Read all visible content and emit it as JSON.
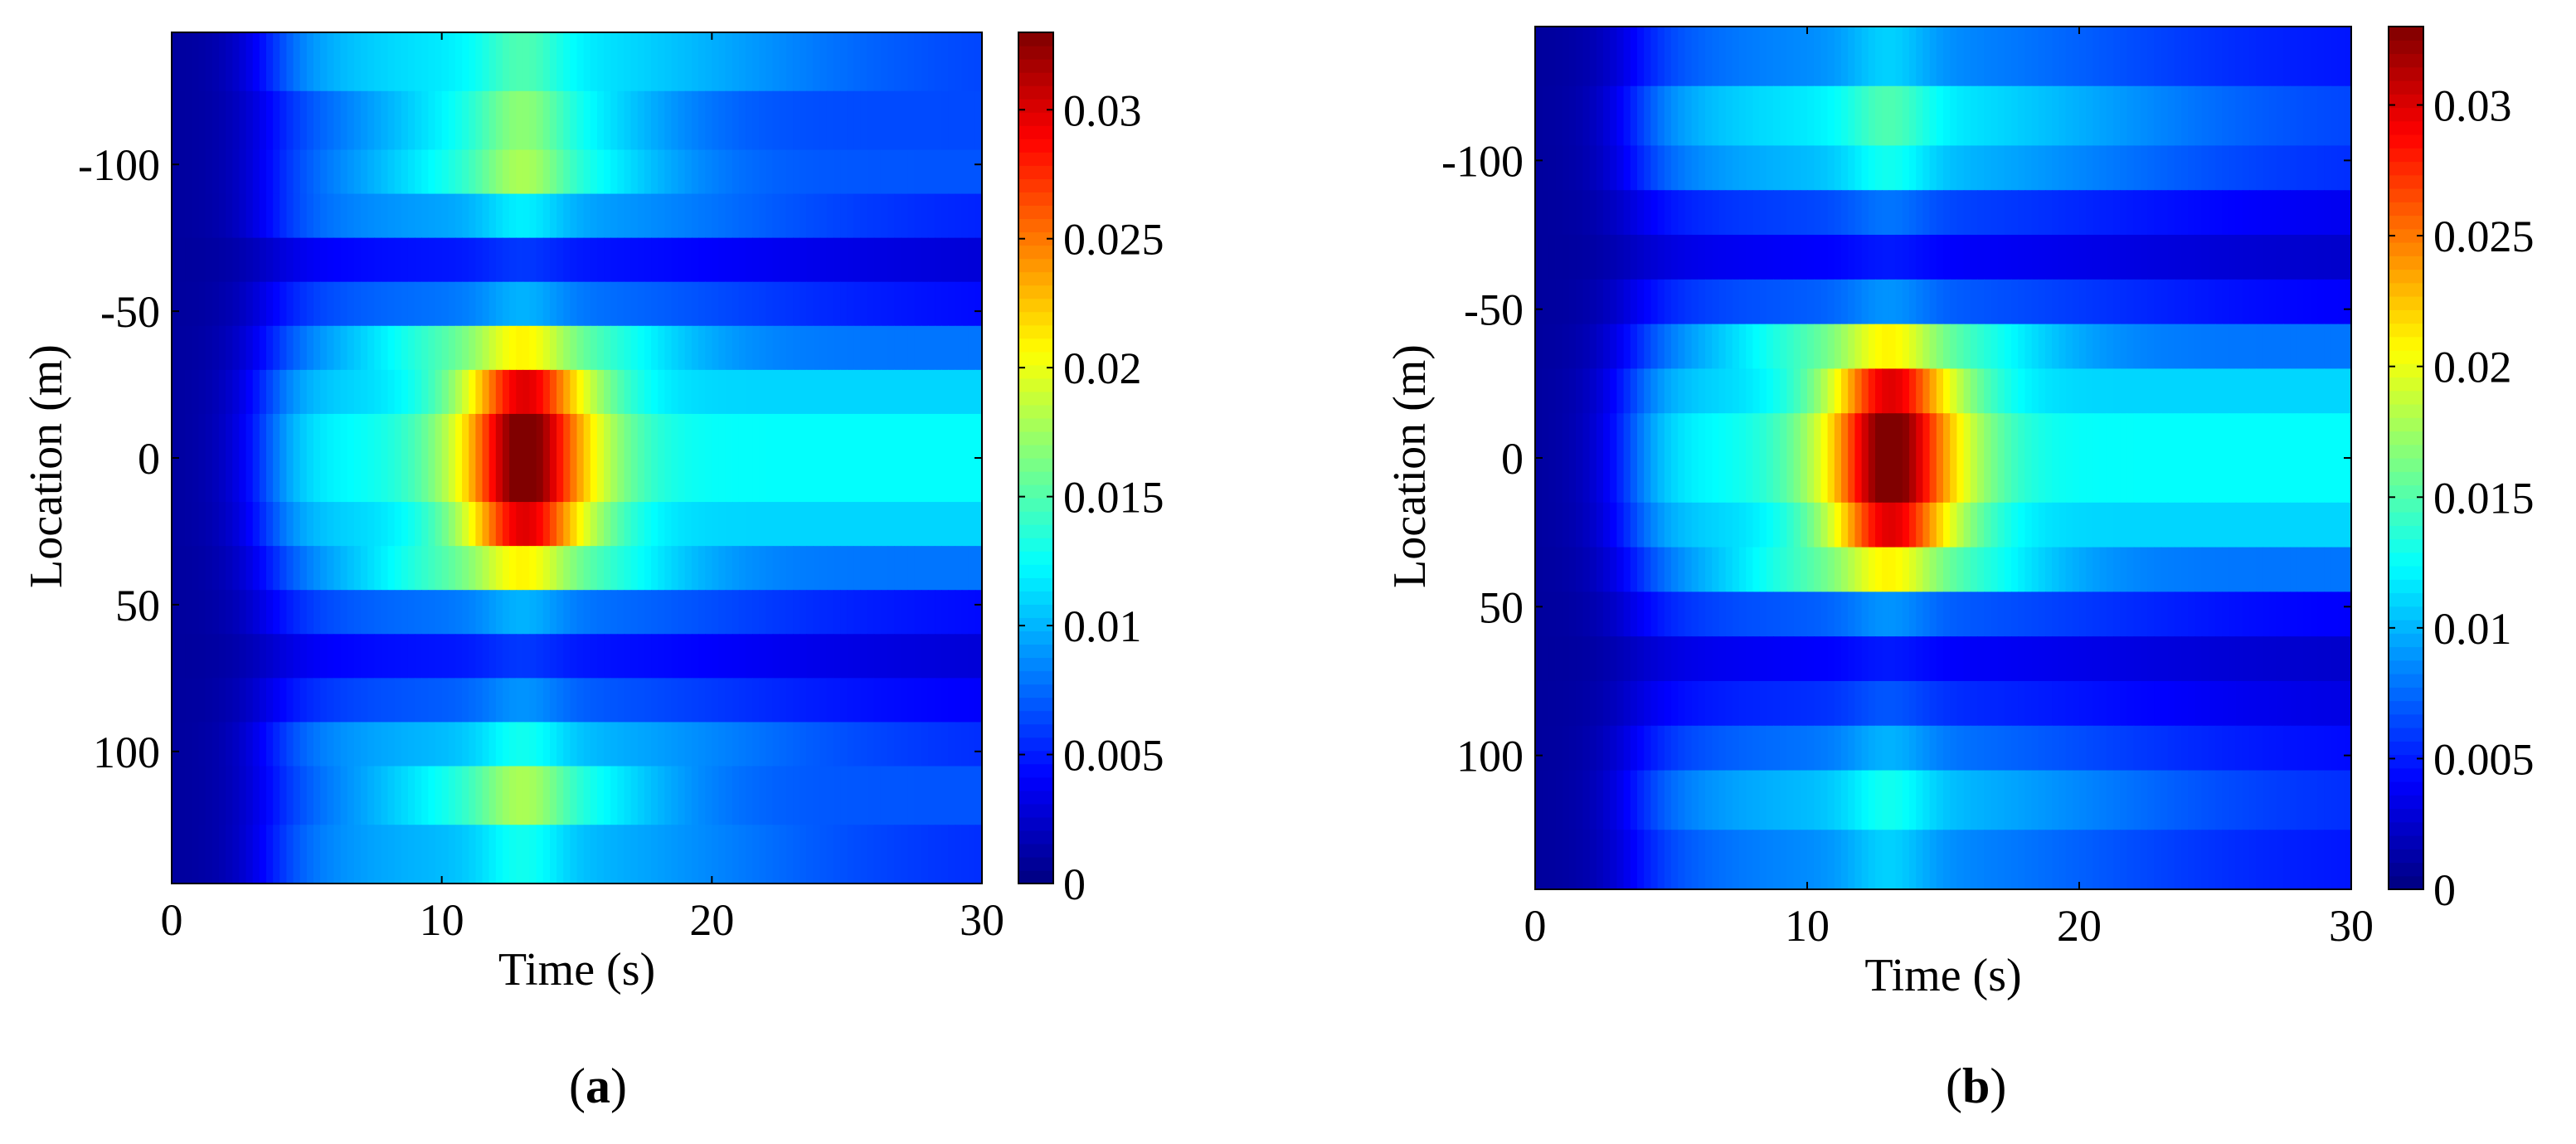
{
  "chart_data": [
    {
      "panel": "a",
      "type": "heatmap",
      "xlabel": "Time (s)",
      "ylabel": "Location (m)",
      "xlim": [
        0,
        30
      ],
      "ylim": [
        -145,
        145
      ],
      "y_direction": "down",
      "xticks": [
        "0",
        "10",
        "20",
        "30"
      ],
      "yticks": [
        "-100",
        "-50",
        "0",
        "50",
        "100"
      ],
      "colorbar": {
        "colormap": "jet",
        "range": [
          0,
          0.033
        ],
        "ticks": [
          "0",
          "0.005",
          "0.01",
          "0.015",
          "0.02",
          "0.025",
          "0.03"
        ]
      },
      "bands": [
        {
          "from": -145,
          "to": -125,
          "peak": 0.014
        },
        {
          "from": -125,
          "to": -105,
          "peak": 0.016
        },
        {
          "from": -105,
          "to": -90,
          "peak": 0.017
        },
        {
          "from": -90,
          "to": -75,
          "peak": 0.011
        },
        {
          "from": -75,
          "to": -60,
          "peak": 0.005
        },
        {
          "from": -60,
          "to": -45,
          "peak": 0.009
        },
        {
          "from": -45,
          "to": -30,
          "peak": 0.02
        },
        {
          "from": -30,
          "to": -15,
          "peak": 0.029
        },
        {
          "from": -15,
          "to": 0,
          "peak": 0.033
        },
        {
          "from": 0,
          "to": 15,
          "peak": 0.033
        },
        {
          "from": 15,
          "to": 30,
          "peak": 0.029
        },
        {
          "from": 30,
          "to": 45,
          "peak": 0.02
        },
        {
          "from": 45,
          "to": 60,
          "peak": 0.009
        },
        {
          "from": 60,
          "to": 75,
          "peak": 0.005
        },
        {
          "from": 75,
          "to": 90,
          "peak": 0.008
        },
        {
          "from": 90,
          "to": 105,
          "peak": 0.012
        },
        {
          "from": 105,
          "to": 125,
          "peak": 0.017
        },
        {
          "from": 125,
          "to": 145,
          "peak": 0.012
        }
      ]
    },
    {
      "panel": "b",
      "type": "heatmap",
      "xlabel": "Time (s)",
      "ylabel": "Location (m)",
      "xlim": [
        0,
        30
      ],
      "ylim": [
        -145,
        145
      ],
      "y_direction": "down",
      "xticks": [
        "0",
        "10",
        "20",
        "30"
      ],
      "yticks": [
        "-100",
        "-50",
        "0",
        "50",
        "100"
      ],
      "colorbar": {
        "colormap": "jet",
        "range": [
          0,
          0.033
        ],
        "ticks": [
          "0",
          "0.005",
          "0.01",
          "0.015",
          "0.02",
          "0.025",
          "0.03"
        ]
      },
      "bands": [
        {
          "from": -145,
          "to": -125,
          "peak": 0.01
        },
        {
          "from": -125,
          "to": -105,
          "peak": 0.014
        },
        {
          "from": -105,
          "to": -90,
          "peak": 0.012
        },
        {
          "from": -90,
          "to": -75,
          "peak": 0.007
        },
        {
          "from": -75,
          "to": -60,
          "peak": 0.004
        },
        {
          "from": -60,
          "to": -45,
          "peak": 0.008
        },
        {
          "from": -45,
          "to": -30,
          "peak": 0.02
        },
        {
          "from": -30,
          "to": -15,
          "peak": 0.029
        },
        {
          "from": -15,
          "to": 0,
          "peak": 0.033
        },
        {
          "from": 0,
          "to": 15,
          "peak": 0.033
        },
        {
          "from": 15,
          "to": 30,
          "peak": 0.029
        },
        {
          "from": 30,
          "to": 45,
          "peak": 0.02
        },
        {
          "from": 45,
          "to": 60,
          "peak": 0.008
        },
        {
          "from": 60,
          "to": 75,
          "peak": 0.004
        },
        {
          "from": 75,
          "to": 90,
          "peak": 0.006
        },
        {
          "from": 90,
          "to": 105,
          "peak": 0.009
        },
        {
          "from": 105,
          "to": 125,
          "peak": 0.012
        },
        {
          "from": 125,
          "to": 145,
          "peak": 0.01
        }
      ]
    }
  ],
  "captions": [
    "a",
    "b"
  ]
}
